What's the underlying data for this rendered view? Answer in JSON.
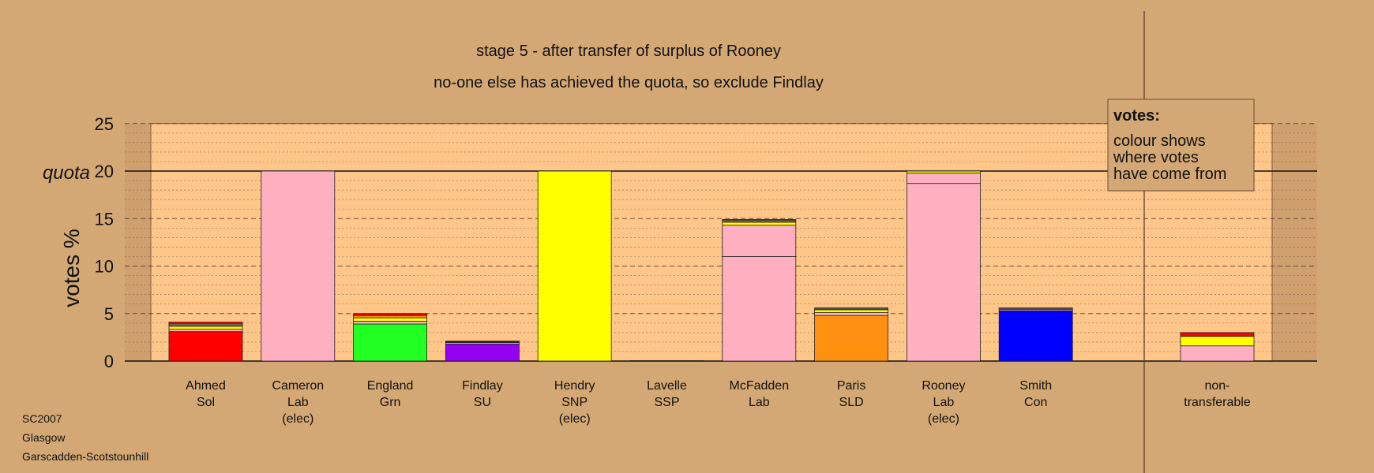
{
  "chart_data": {
    "type": "bar",
    "title": "stage 5 - after transfer of surplus of Rooney",
    "subtitle": "no-one else has achieved the quota, so exclude Findlay",
    "ylabel": "votes %",
    "ylim": [
      0,
      25
    ],
    "yticks": [
      "0",
      "5",
      "10",
      "15",
      "20",
      "25"
    ],
    "quota": 20,
    "quota_label": "quota",
    "legend": {
      "title": "votes:",
      "lines": [
        "colour shows",
        "where votes",
        "have come from"
      ],
      "position": "top-right"
    },
    "colors": {
      "background": "#d4a874",
      "plot": "#ffc68a",
      "shaded": "#cfa06e",
      "divider": "#5a4030"
    },
    "candidates": [
      {
        "name": "Ahmed",
        "party": "Sol",
        "status": "",
        "segments": [
          {
            "value": 3.1,
            "color": "#ff0000"
          },
          {
            "value": 0.25,
            "color": "#ffb0c0"
          },
          {
            "value": 0.3,
            "color": "#ffff00"
          },
          {
            "value": 0.15,
            "color": "#ff9010"
          },
          {
            "value": 0.1,
            "color": "#ffffff"
          },
          {
            "value": 0.2,
            "color": "#ff0000"
          }
        ]
      },
      {
        "name": "Cameron",
        "party": "Lab",
        "status": "(elec)",
        "segments": [
          {
            "value": 20.0,
            "color": "#ffb0c0"
          }
        ]
      },
      {
        "name": "England",
        "party": "Grn",
        "status": "",
        "segments": [
          {
            "value": 3.9,
            "color": "#22ff22"
          },
          {
            "value": 0.3,
            "color": "#ffb0c0"
          },
          {
            "value": 0.35,
            "color": "#ffff00"
          },
          {
            "value": 0.25,
            "color": "#ff9010"
          },
          {
            "value": 0.2,
            "color": "#ff0000"
          }
        ]
      },
      {
        "name": "Findlay",
        "party": "SU",
        "status": "",
        "segments": [
          {
            "value": 1.8,
            "color": "#9400f0"
          },
          {
            "value": 0.15,
            "color": "#ffb0c0"
          },
          {
            "value": 0.15,
            "color": "#222222"
          }
        ]
      },
      {
        "name": "Hendry",
        "party": "SNP",
        "status": "(elec)",
        "segments": [
          {
            "value": 20.0,
            "color": "#ffff00"
          }
        ]
      },
      {
        "name": "Lavelle",
        "party": "SSP",
        "status": "",
        "segments": [
          {
            "value": 0.05,
            "color": "#ff0000"
          }
        ]
      },
      {
        "name": "McFadden",
        "party": "Lab",
        "status": "",
        "segments": [
          {
            "value": 11.0,
            "color": "#ffb0c0"
          },
          {
            "value": 3.3,
            "color": "#ffb0c0"
          },
          {
            "value": 0.3,
            "color": "#ffff00"
          },
          {
            "value": 0.15,
            "color": "#ff9010"
          },
          {
            "value": 0.15,
            "color": "#555555"
          }
        ]
      },
      {
        "name": "Paris",
        "party": "SLD",
        "status": "",
        "segments": [
          {
            "value": 4.8,
            "color": "#ff9010"
          },
          {
            "value": 0.3,
            "color": "#ffb0c0"
          },
          {
            "value": 0.3,
            "color": "#ffff00"
          },
          {
            "value": 0.2,
            "color": "#555555"
          }
        ]
      },
      {
        "name": "Rooney",
        "party": "Lab",
        "status": "(elec)",
        "segments": [
          {
            "value": 18.7,
            "color": "#ffb0c0"
          },
          {
            "value": 1.1,
            "color": "#ffb0c0"
          },
          {
            "value": 0.2,
            "color": "#ffff00"
          }
        ]
      },
      {
        "name": "Smith",
        "party": "Con",
        "status": "",
        "segments": [
          {
            "value": 5.3,
            "color": "#0000ff"
          },
          {
            "value": 0.15,
            "color": "#ffb0c0"
          },
          {
            "value": 0.15,
            "color": "#555555"
          }
        ]
      }
    ],
    "nontransferable": {
      "name": "non-",
      "party": "transferable",
      "status": "",
      "segments": [
        {
          "value": 1.6,
          "color": "#ffb0c0"
        },
        {
          "value": 1.0,
          "color": "#ffff00"
        },
        {
          "value": 0.4,
          "color": "#ff0000"
        }
      ]
    }
  },
  "footer": {
    "lines": [
      "SC2007",
      "Glasgow",
      "Garscadden-Scotstounhill"
    ]
  }
}
